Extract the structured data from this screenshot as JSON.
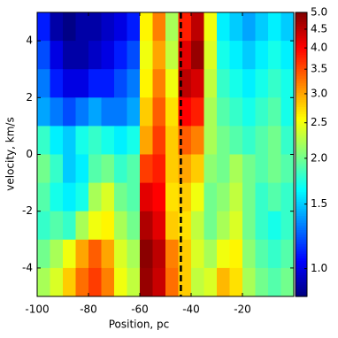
{
  "chart_data": {
    "type": "heatmap",
    "xlabel": "Position, pc",
    "ylabel": "velocity, km/s",
    "xlim": [
      -100,
      0
    ],
    "ylim": [
      -5,
      5
    ],
    "xticks": [
      -100,
      -80,
      -60,
      -40,
      -20
    ],
    "yticks": [
      -4,
      -2,
      0,
      2,
      4
    ],
    "x": [
      -97.5,
      -92.5,
      -87.5,
      -82.5,
      -77.5,
      -72.5,
      -67.5,
      -62.5,
      -57.5,
      -52.5,
      -47.5,
      -42.5,
      -37.5,
      -32.5,
      -27.5,
      -22.5,
      -17.5,
      -12.5,
      -7.5,
      -2.5
    ],
    "y": [
      4.5,
      3.5,
      2.5,
      1.5,
      0.5,
      -0.5,
      -1.5,
      -2.5,
      -3.5,
      -4.5
    ],
    "z": [
      [
        1.1,
        0.9,
        0.85,
        0.9,
        0.9,
        0.95,
        1.0,
        1.1,
        2.6,
        3.2,
        2.2,
        3.8,
        4.5,
        2.5,
        1.6,
        1.5,
        1.4,
        1.5,
        1.6,
        1.5
      ],
      [
        1.2,
        1.0,
        0.9,
        0.9,
        0.95,
        1.0,
        1.1,
        1.2,
        2.5,
        3.0,
        2.3,
        4.2,
        4.8,
        2.4,
        1.7,
        1.6,
        1.5,
        1.6,
        1.7,
        1.6
      ],
      [
        1.3,
        1.1,
        1.0,
        1.0,
        1.1,
        1.1,
        1.2,
        1.3,
        2.6,
        3.2,
        2.5,
        4.5,
        4.3,
        2.3,
        1.8,
        1.7,
        1.6,
        1.7,
        1.8,
        1.7
      ],
      [
        1.4,
        1.3,
        1.2,
        1.3,
        1.4,
        1.3,
        1.3,
        1.4,
        2.8,
        3.4,
        2.7,
        4.0,
        3.8,
        2.2,
        1.9,
        1.8,
        1.7,
        1.8,
        1.9,
        1.7
      ],
      [
        1.8,
        1.6,
        1.5,
        1.7,
        1.8,
        1.7,
        1.6,
        1.7,
        3.0,
        3.6,
        2.8,
        3.4,
        3.2,
        2.2,
        2.0,
        1.9,
        1.8,
        1.9,
        2.0,
        1.8
      ],
      [
        2.0,
        1.8,
        1.5,
        1.6,
        1.9,
        2.0,
        1.8,
        1.9,
        3.6,
        3.8,
        2.8,
        3.0,
        2.8,
        2.1,
        2.0,
        2.2,
        2.0,
        1.9,
        2.0,
        1.9
      ],
      [
        1.9,
        1.7,
        1.6,
        1.7,
        2.2,
        2.4,
        2.0,
        1.9,
        4.2,
        4.0,
        2.7,
        2.8,
        2.5,
        2.0,
        2.1,
        2.3,
        2.0,
        1.8,
        1.9,
        1.8
      ],
      [
        1.8,
        1.9,
        1.8,
        2.2,
        2.5,
        2.6,
        2.2,
        2.0,
        4.6,
        4.2,
        2.8,
        2.7,
        2.3,
        2.0,
        2.2,
        2.4,
        2.0,
        1.8,
        1.7,
        1.8
      ],
      [
        2.0,
        2.2,
        2.5,
        3.0,
        3.4,
        3.0,
        2.4,
        2.2,
        4.9,
        4.5,
        3.2,
        2.8,
        2.4,
        2.2,
        2.5,
        2.6,
        2.1,
        1.9,
        1.8,
        1.9
      ],
      [
        2.2,
        2.4,
        2.8,
        3.3,
        3.6,
        3.2,
        2.5,
        2.3,
        4.8,
        4.4,
        3.3,
        2.8,
        2.3,
        2.4,
        2.9,
        2.7,
        2.2,
        2.0,
        1.9,
        2.0
      ]
    ],
    "colorbar": {
      "cmap": "jet",
      "log": true,
      "lim": [
        0.84,
        5.0
      ],
      "ticks": [
        {
          "value": 1.0,
          "label": "1.0"
        },
        {
          "value": 1.5,
          "label": "1.5"
        },
        {
          "value": 2.0,
          "label": "2.0"
        },
        {
          "value": 2.5,
          "label": "2.5"
        },
        {
          "value": 3.0,
          "label": "3.0"
        },
        {
          "value": 3.5,
          "label": "3.5"
        },
        {
          "value": 4.0,
          "label": "4.0"
        },
        {
          "value": 4.5,
          "label": "4.5"
        },
        {
          "value": 5.0,
          "label": "5.0"
        }
      ]
    },
    "vline": {
      "x": -44,
      "color": "#000000"
    }
  }
}
